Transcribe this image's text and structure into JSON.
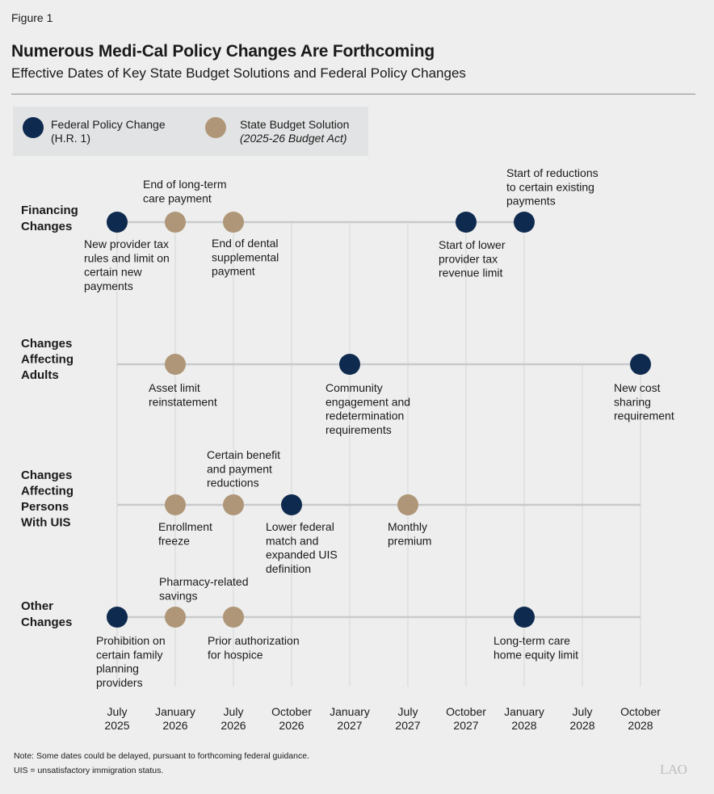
{
  "figure_label": "Figure 1",
  "title": "Numerous Medi-Cal Policy Changes Are Forthcoming",
  "subtitle": "Effective Dates of Key State Budget Solutions and Federal Policy Changes",
  "legend": {
    "federal": {
      "line1": "Federal Policy Change",
      "line2": "(H.R. 1)",
      "color": "#0f2a4f"
    },
    "state": {
      "line1": "State Budget Solution",
      "line2": "(2025-26 Budget Act)",
      "color": "#af9678"
    }
  },
  "chart_data": {
    "type": "timeline",
    "columns": [
      [
        "July",
        "2025"
      ],
      [
        "January",
        "2026"
      ],
      [
        "July",
        "2026"
      ],
      [
        "October",
        "2026"
      ],
      [
        "January",
        "2027"
      ],
      [
        "July",
        "2027"
      ],
      [
        "October",
        "2027"
      ],
      [
        "January",
        "2028"
      ],
      [
        "July",
        "2028"
      ],
      [
        "October",
        "2028"
      ]
    ],
    "rows": [
      {
        "label": [
          "Financing",
          "Changes"
        ],
        "events": [
          {
            "date": "July 2025",
            "type": "federal",
            "text": [
              "New provider tax",
              "rules and limit on",
              "certain new",
              "payments"
            ]
          },
          {
            "date": "January 2026",
            "type": "state",
            "text": [
              "End of long-term",
              "care payment"
            ]
          },
          {
            "date": "July 2026",
            "type": "state",
            "text": [
              "End of dental",
              "supplemental",
              "payment"
            ]
          },
          {
            "date": "October 2027",
            "type": "federal",
            "text": [
              "Start of lower",
              "provider tax",
              "revenue limit"
            ]
          },
          {
            "date": "January 2028",
            "type": "federal",
            "text": [
              "Start of reductions",
              "to certain existing",
              "payments"
            ]
          }
        ]
      },
      {
        "label": [
          "Changes",
          "Affecting",
          "Adults"
        ],
        "events": [
          {
            "date": "January 2026",
            "type": "state",
            "text": [
              "Asset limit",
              "reinstatement"
            ]
          },
          {
            "date": "January 2027",
            "type": "federal",
            "text": [
              "Community",
              "engagement and",
              "redetermination",
              "requirements"
            ]
          },
          {
            "date": "October 2028",
            "type": "federal",
            "text": [
              "New cost",
              "sharing",
              "requirement"
            ]
          }
        ]
      },
      {
        "label": [
          "Changes",
          "Affecting",
          "Persons",
          "With UIS"
        ],
        "events": [
          {
            "date": "January 2026",
            "type": "state",
            "text": [
              "Enrollment",
              "freeze"
            ]
          },
          {
            "date": "July 2026",
            "type": "state",
            "text": [
              "Certain benefit",
              "and payment",
              "reductions"
            ]
          },
          {
            "date": "October 2026",
            "type": "federal",
            "text": [
              "Lower federal",
              "match and",
              "expanded UIS",
              "definition"
            ]
          },
          {
            "date": "July 2027",
            "type": "state",
            "text": [
              "Monthly",
              "premium"
            ]
          }
        ]
      },
      {
        "label": [
          "Other",
          "Changes"
        ],
        "events": [
          {
            "date": "July 2025",
            "type": "federal",
            "text": [
              "Prohibition on",
              "certain family",
              "planning",
              "providers"
            ]
          },
          {
            "date": "January 2026",
            "type": "state",
            "text": [
              "Pharmacy-related",
              "savings"
            ]
          },
          {
            "date": "July 2026",
            "type": "state",
            "text": [
              "Prior authorization",
              "for hospice"
            ]
          },
          {
            "date": "January 2028",
            "type": "federal",
            "text": [
              "Long-term care",
              "home equity limit"
            ]
          }
        ]
      }
    ]
  },
  "notes": {
    "note": "Note: Some dates could be delayed, pursuant to forthcoming federal guidance.",
    "uis": "UIS = unsatisfactory immigration status."
  },
  "logo": "LAO"
}
